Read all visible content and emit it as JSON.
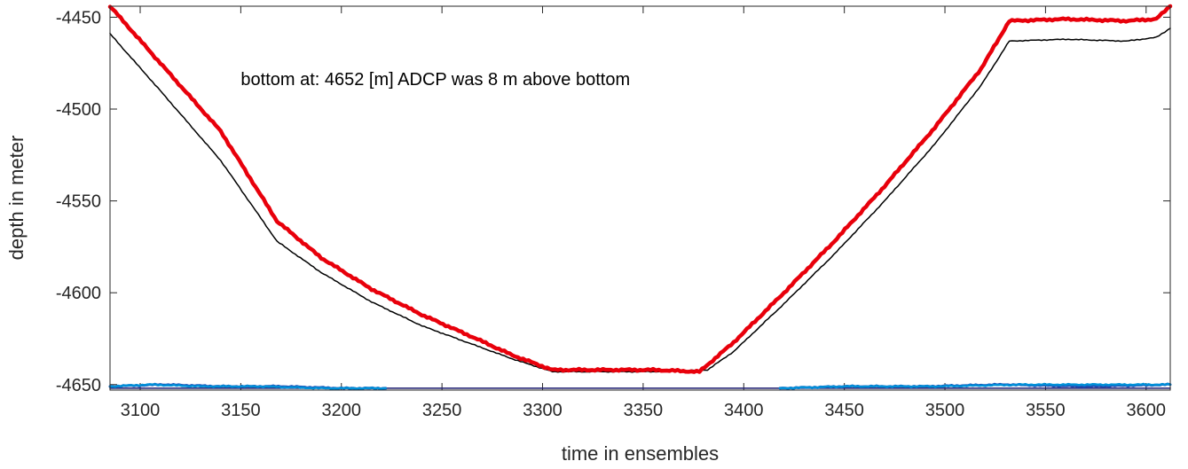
{
  "chart_data": {
    "type": "line",
    "xlabel": "time in ensembles",
    "ylabel": "depth in meter",
    "xlim": [
      3085,
      3612
    ],
    "ylim": [
      -4653,
      -4444
    ],
    "x_ticks": [
      3100,
      3150,
      3200,
      3250,
      3300,
      3350,
      3400,
      3450,
      3500,
      3550,
      3600
    ],
    "y_ticks": [
      -4450,
      -4500,
      -4550,
      -4600,
      -4650
    ],
    "annotation": {
      "text": "bottom at: 4652 [m]   ADCP was 8 m above bottom",
      "x": 3150,
      "y": -4487
    },
    "colors": {
      "red": "#e8000b",
      "black": "#000000",
      "blue": "#1f4fb4",
      "cyan": "#0090d8",
      "navy": "#1a1a6e",
      "axes": "#262626"
    },
    "series": [
      {
        "color": "red",
        "points": [
          [
            3085,
            -4444
          ],
          [
            3110,
            -4475
          ],
          [
            3140,
            -4512
          ],
          [
            3168,
            -4561
          ],
          [
            3190,
            -4581
          ],
          [
            3215,
            -4598
          ],
          [
            3240,
            -4612
          ],
          [
            3265,
            -4624
          ],
          [
            3285,
            -4634
          ],
          [
            3305,
            -4642
          ],
          [
            3330,
            -4642
          ],
          [
            3355,
            -4642
          ],
          [
            3378,
            -4643
          ],
          [
            3395,
            -4627
          ],
          [
            3420,
            -4600
          ],
          [
            3445,
            -4572
          ],
          [
            3470,
            -4542
          ],
          [
            3495,
            -4510
          ],
          [
            3518,
            -4478
          ],
          [
            3532,
            -4452
          ],
          [
            3560,
            -4451
          ],
          [
            3590,
            -4452
          ],
          [
            3605,
            -4451
          ],
          [
            3612,
            -4444
          ]
        ]
      },
      {
        "color": "black",
        "points": [
          [
            3085,
            -4459
          ],
          [
            3110,
            -4490
          ],
          [
            3140,
            -4528
          ],
          [
            3168,
            -4572
          ],
          [
            3190,
            -4589
          ],
          [
            3215,
            -4605
          ],
          [
            3240,
            -4618
          ],
          [
            3265,
            -4628
          ],
          [
            3285,
            -4636
          ],
          [
            3305,
            -4643
          ],
          [
            3330,
            -4643
          ],
          [
            3355,
            -4643
          ],
          [
            3382,
            -4642
          ],
          [
            3395,
            -4632
          ],
          [
            3420,
            -4606
          ],
          [
            3445,
            -4579
          ],
          [
            3470,
            -4550
          ],
          [
            3495,
            -4519
          ],
          [
            3518,
            -4487
          ],
          [
            3532,
            -4463
          ],
          [
            3560,
            -4462
          ],
          [
            3590,
            -4463
          ],
          [
            3605,
            -4461
          ],
          [
            3612,
            -4456
          ]
        ]
      },
      {
        "color": "navy",
        "points": [
          [
            3085,
            -4652
          ],
          [
            3612,
            -4652
          ]
        ]
      },
      {
        "color": "blue",
        "segments": [
          [
            [
              3085,
              -4651
            ],
            [
              3110,
              -4650
            ],
            [
              3140,
              -4651
            ],
            [
              3170,
              -4651
            ],
            [
              3200,
              -4652
            ],
            [
              3222,
              -4652
            ]
          ],
          [
            [
              3418,
              -4652
            ],
            [
              3450,
              -4651
            ],
            [
              3490,
              -4651
            ],
            [
              3530,
              -4650
            ],
            [
              3570,
              -4651
            ],
            [
              3612,
              -4650
            ]
          ]
        ]
      },
      {
        "color": "cyan",
        "segments": [
          [
            [
              3085,
              -4651
            ],
            [
              3105,
              -4650
            ],
            [
              3130,
              -4651
            ],
            [
              3160,
              -4651
            ],
            [
              3190,
              -4652
            ],
            [
              3222,
              -4652
            ]
          ],
          [
            [
              3418,
              -4652
            ],
            [
              3450,
              -4651
            ],
            [
              3495,
              -4651
            ],
            [
              3540,
              -4650
            ],
            [
              3580,
              -4650
            ],
            [
              3612,
              -4650
            ]
          ]
        ]
      }
    ]
  }
}
